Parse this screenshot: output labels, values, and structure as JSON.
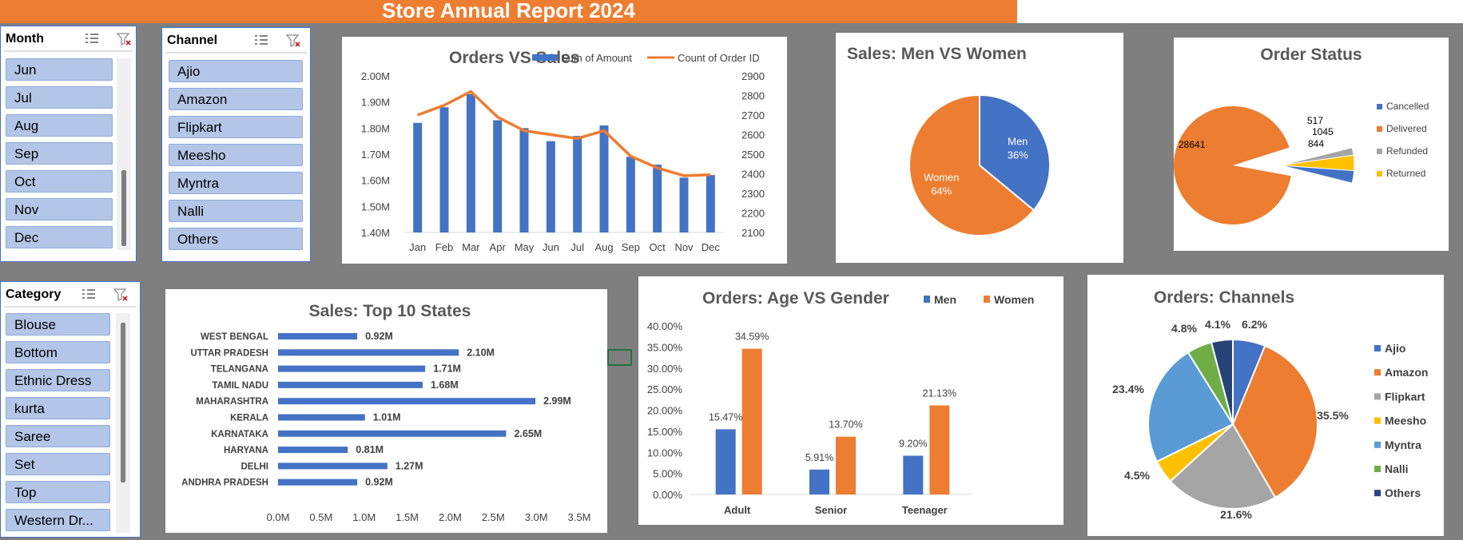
{
  "report_title": "Store Annual Report 2024",
  "slicers": {
    "month": {
      "title": "Month",
      "items": [
        "Jun",
        "Jul",
        "Aug",
        "Sep",
        "Oct",
        "Nov",
        "Dec"
      ]
    },
    "channel": {
      "title": "Channel",
      "items": [
        "Ajio",
        "Amazon",
        "Flipkart",
        "Meesho",
        "Myntra",
        "Nalli",
        "Others"
      ]
    },
    "category": {
      "title": "Category",
      "items": [
        "Blouse",
        "Bottom",
        "Ethnic Dress",
        "kurta",
        "Saree",
        "Set",
        "Top",
        "Western Dr..."
      ]
    }
  },
  "colors": {
    "blue": "#4472c4",
    "orange": "#ed7d31",
    "gray": "#a5a5a5",
    "yellow": "#ffc000",
    "lightblue": "#5b9bd5",
    "green": "#70ad47",
    "navy": "#264478"
  },
  "chart_data": [
    {
      "id": "orders_vs_sales",
      "type": "bar",
      "title": "Orders VS Sales",
      "categories": [
        "Jan",
        "Feb",
        "Mar",
        "Apr",
        "May",
        "Jun",
        "Jul",
        "Aug",
        "Sep",
        "Oct",
        "Nov",
        "Dec"
      ],
      "series": [
        {
          "name": "Sum of Amount",
          "kind": "bar",
          "axis": "left",
          "values": [
            1.82,
            1.88,
            1.93,
            1.83,
            1.8,
            1.75,
            1.77,
            1.81,
            1.69,
            1.66,
            1.61,
            1.62
          ]
        },
        {
          "name": "Count of Order ID",
          "kind": "line",
          "axis": "right",
          "values": [
            2700,
            2750,
            2820,
            2690,
            2620,
            2600,
            2580,
            2620,
            2490,
            2430,
            2390,
            2395
          ]
        }
      ],
      "left_ticks": [
        "1.40M",
        "1.50M",
        "1.60M",
        "1.70M",
        "1.80M",
        "1.90M",
        "2.00M"
      ],
      "right_ticks": [
        "2100",
        "2200",
        "2300",
        "2400",
        "2500",
        "2600",
        "2700",
        "2800",
        "2900"
      ],
      "ylim_left": [
        1.4,
        2.0
      ],
      "ylim_right": [
        2100,
        2900
      ],
      "legend": "top"
    },
    {
      "id": "sales_men_women",
      "type": "pie",
      "title": "Sales: Men VS Women",
      "slices": [
        {
          "name": "Men",
          "value": 36,
          "label": "36%"
        },
        {
          "name": "Women",
          "value": 64,
          "label": "64%"
        }
      ]
    },
    {
      "id": "order_status",
      "type": "pie",
      "title": "Order Status",
      "slices": [
        {
          "name": "Cancelled",
          "value": 844,
          "label": "844"
        },
        {
          "name": "Delivered",
          "value": 28641,
          "label": "28641"
        },
        {
          "name": "Refunded",
          "value": 517,
          "label": "517"
        },
        {
          "name": "Returned",
          "value": 1045,
          "label": "1045"
        }
      ],
      "legend": "right"
    },
    {
      "id": "top_states",
      "type": "bar",
      "orientation": "horizontal",
      "title": "Sales: Top 10 States",
      "categories": [
        "WEST BENGAL",
        "UTTAR PRADESH",
        "TELANGANA",
        "TAMIL NADU",
        "MAHARASHTRA",
        "KERALA",
        "KARNATAKA",
        "HARYANA",
        "DELHI",
        "ANDHRA PRADESH"
      ],
      "values": [
        0.92,
        2.1,
        1.71,
        1.68,
        2.99,
        1.01,
        2.65,
        0.81,
        1.27,
        0.92
      ],
      "data_labels": [
        "0.92M",
        "2.10M",
        "1.71M",
        "1.68M",
        "2.99M",
        "1.01M",
        "2.65M",
        "0.81M",
        "1.27M",
        "0.92M"
      ],
      "x_ticks": [
        "0.0M",
        "0.5M",
        "1.0M",
        "1.5M",
        "2.0M",
        "2.5M",
        "3.0M",
        "3.5M"
      ],
      "xlim": [
        0,
        3.5
      ]
    },
    {
      "id": "age_gender",
      "type": "bar",
      "title": "Orders: Age VS Gender",
      "categories": [
        "Adult",
        "Senior",
        "Teenager"
      ],
      "series": [
        {
          "name": "Men",
          "values": [
            15.47,
            5.91,
            9.2
          ],
          "labels": [
            "15.47%",
            "5.91%",
            "9.20%"
          ]
        },
        {
          "name": "Women",
          "values": [
            34.59,
            13.7,
            21.13
          ],
          "labels": [
            "34.59%",
            "13.70%",
            "21.13%"
          ]
        }
      ],
      "y_ticks": [
        "0.00%",
        "5.00%",
        "10.00%",
        "15.00%",
        "20.00%",
        "25.00%",
        "30.00%",
        "35.00%",
        "40.00%"
      ],
      "ylim": [
        0,
        40
      ],
      "legend": "top-right"
    },
    {
      "id": "channels",
      "type": "pie",
      "title": "Orders: Channels",
      "slices": [
        {
          "name": "Ajio",
          "value": 6.2,
          "label": "6.2%"
        },
        {
          "name": "Amazon",
          "value": 35.5,
          "label": "35.5%"
        },
        {
          "name": "Flipkart",
          "value": 21.6,
          "label": "21.6%"
        },
        {
          "name": "Meesho",
          "value": 4.5,
          "label": "4.5%"
        },
        {
          "name": "Myntra",
          "value": 23.4,
          "label": "23.4%"
        },
        {
          "name": "Nalli",
          "value": 4.8,
          "label": "4.8%"
        },
        {
          "name": "Others",
          "value": 4.1,
          "label": "4.1%"
        }
      ],
      "legend": "right"
    }
  ]
}
